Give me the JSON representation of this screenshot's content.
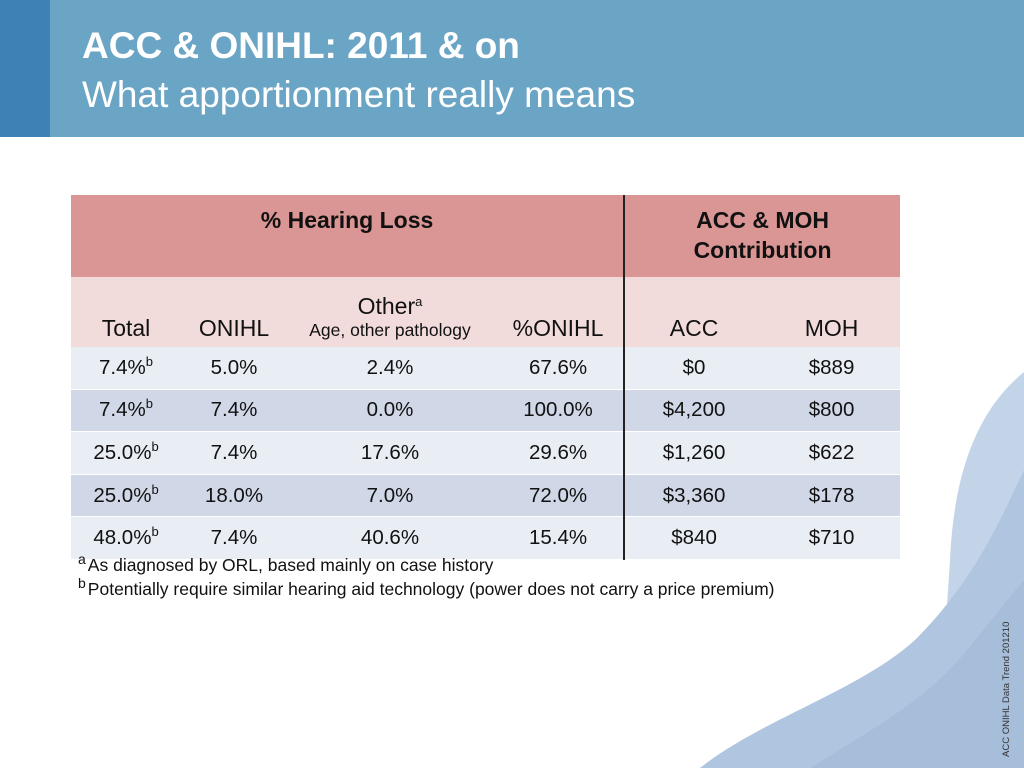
{
  "header": {
    "title": "ACC & ONIHL: 2011 & on",
    "subtitle": "What apportionment really means"
  },
  "table": {
    "groups": {
      "hearing_loss": "% Hearing Loss",
      "contribution": "ACC & MOH Contribution"
    },
    "columns": {
      "total": "Total",
      "onihl": "ONIHL",
      "other": "Other",
      "other_sup": "a",
      "other_sub": "Age, other pathology",
      "pct_onihl": "%ONIHL",
      "acc": "ACC",
      "moh": "MOH"
    },
    "rows": [
      {
        "total": "7.4%",
        "sup": "b",
        "onihl": "5.0%",
        "other": "2.4%",
        "pct_onihl": "67.6%",
        "acc": "$0",
        "moh": "$889"
      },
      {
        "total": "7.4%",
        "sup": "b",
        "onihl": "7.4%",
        "other": "0.0%",
        "pct_onihl": "100.0%",
        "acc": "$4,200",
        "moh": "$800"
      },
      {
        "total": "25.0%",
        "sup": "b",
        "onihl": "7.4%",
        "other": "17.6%",
        "pct_onihl": "29.6%",
        "acc": "$1,260",
        "moh": "$622"
      },
      {
        "total": "25.0%",
        "sup": "b",
        "onihl": "18.0%",
        "other": "7.0%",
        "pct_onihl": "72.0%",
        "acc": "$3,360",
        "moh": "$178"
      },
      {
        "total": "48.0%",
        "sup": "b",
        "onihl": "7.4%",
        "other": "40.6%",
        "pct_onihl": "15.4%",
        "acc": "$840",
        "moh": "$710"
      }
    ]
  },
  "notes": [
    {
      "marker": "a",
      "text": "As diagnosed by ORL, based mainly on case history"
    },
    {
      "marker": "b",
      "text": "Potentially require similar hearing aid technology (power does not carry a price premium)"
    }
  ],
  "footer": {
    "tag": "ACC ONIHL Data Trend 201210"
  },
  "colors": {
    "header": "#6ba5c6",
    "header_accent": "#3e82b5",
    "band": "#d99694",
    "col_header": "#f2dcdb",
    "row_light": "#e9edf4",
    "row_dark": "#d0d8e8",
    "wave": "#b0c6e0"
  }
}
